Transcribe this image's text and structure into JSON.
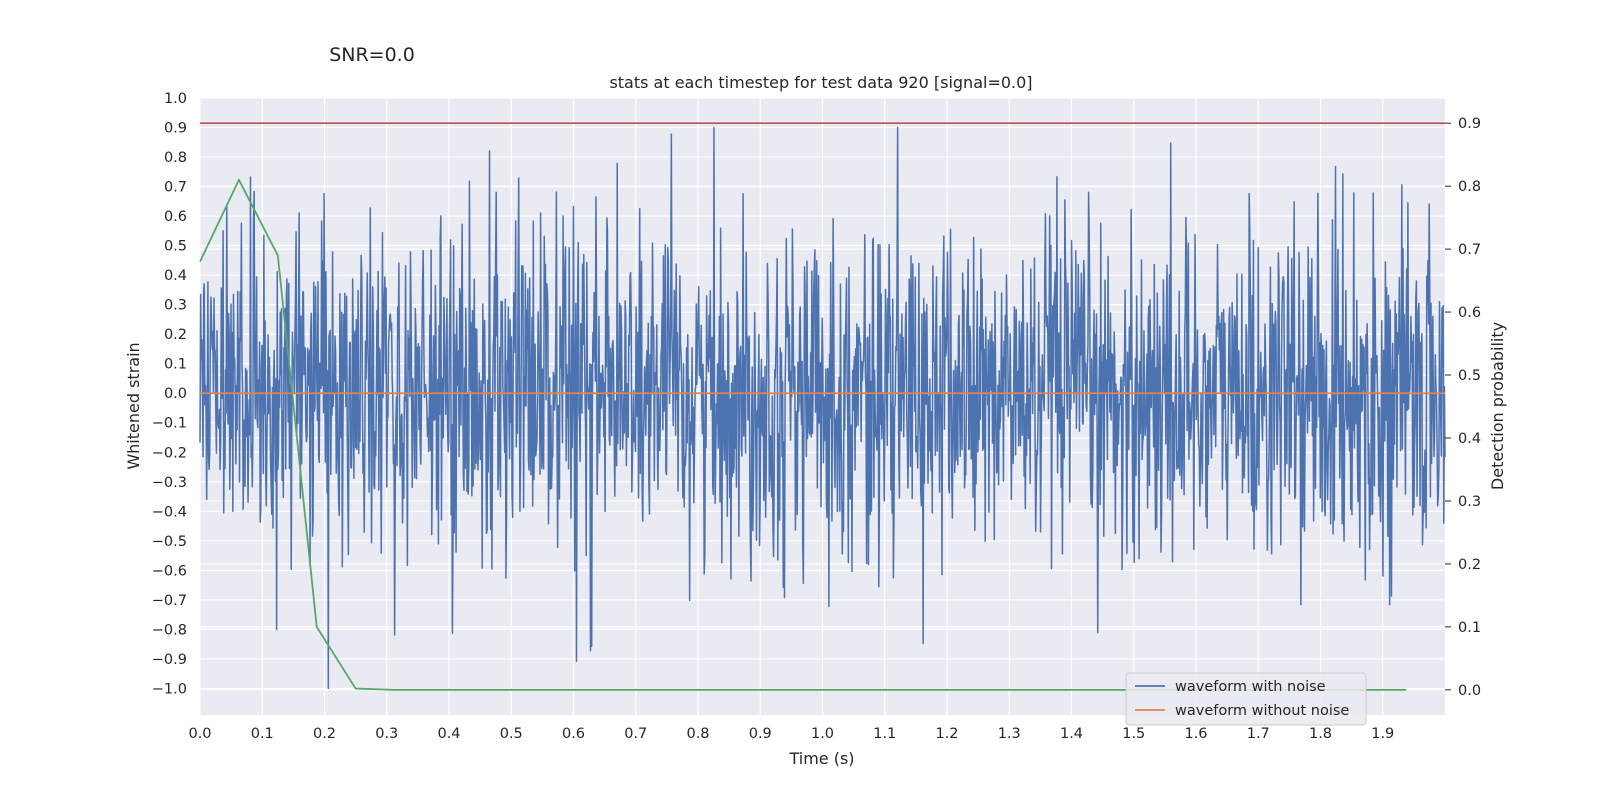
{
  "suptitle": "SNR=0.0",
  "chart_data": {
    "type": "line",
    "title": "stats at each timestep for test data 920 [signal=0.0]",
    "xlabel": "Time (s)",
    "ylabel_left": "Whitened strain",
    "ylabel_right": "Detection probability",
    "xlim": [
      0.0,
      2.0
    ],
    "ylim_left": [
      -1.09,
      1.0
    ],
    "ylim_right": [
      -0.04,
      0.94
    ],
    "x_ticks": [
      "0.0",
      "0.1",
      "0.2",
      "0.3",
      "0.4",
      "0.5",
      "0.6",
      "0.7",
      "0.8",
      "0.9",
      "1.0",
      "1.1",
      "1.2",
      "1.3",
      "1.4",
      "1.5",
      "1.6",
      "1.7",
      "1.8",
      "1.9"
    ],
    "y_left_ticks": [
      "1.0",
      "0.9",
      "0.8",
      "0.7",
      "0.6",
      "0.5",
      "0.4",
      "0.3",
      "0.2",
      "0.1",
      "0.0",
      "−0.1",
      "−0.2",
      "−0.3",
      "−0.4",
      "−0.5",
      "−0.6",
      "−0.7",
      "−0.8",
      "−0.9",
      "−1.0"
    ],
    "y_right_ticks": [
      "0.9",
      "0.8",
      "0.7",
      "0.6",
      "0.5",
      "0.4",
      "0.3",
      "0.2",
      "0.1",
      "0.0"
    ],
    "grid": true,
    "legend_position": "lower-right",
    "threshold": {
      "axis": "right",
      "value": 0.9,
      "color": "#c44e52"
    },
    "series": [
      {
        "name": "waveform with noise",
        "axis": "left",
        "color": "#4c72b0",
        "kind": "noise",
        "samples": 2048,
        "x_range": [
          0.0,
          2.0
        ],
        "approx_std": 0.27,
        "min": -1.0,
        "max": 0.9
      },
      {
        "name": "waveform without noise",
        "axis": "left",
        "color": "#dd8452",
        "x": [
          0.0,
          2.0
        ],
        "y": [
          0.0,
          0.0
        ]
      },
      {
        "name": "",
        "axis": "right",
        "color": "#55a868",
        "x": [
          0.0,
          0.0625,
          0.125,
          0.1875,
          0.25,
          0.3125,
          0.375,
          1.0,
          1.5,
          1.9375
        ],
        "y": [
          0.68,
          0.81,
          0.69,
          0.1,
          0.002,
          0.0,
          0.0,
          0.0,
          0.0,
          0.0
        ]
      }
    ]
  }
}
